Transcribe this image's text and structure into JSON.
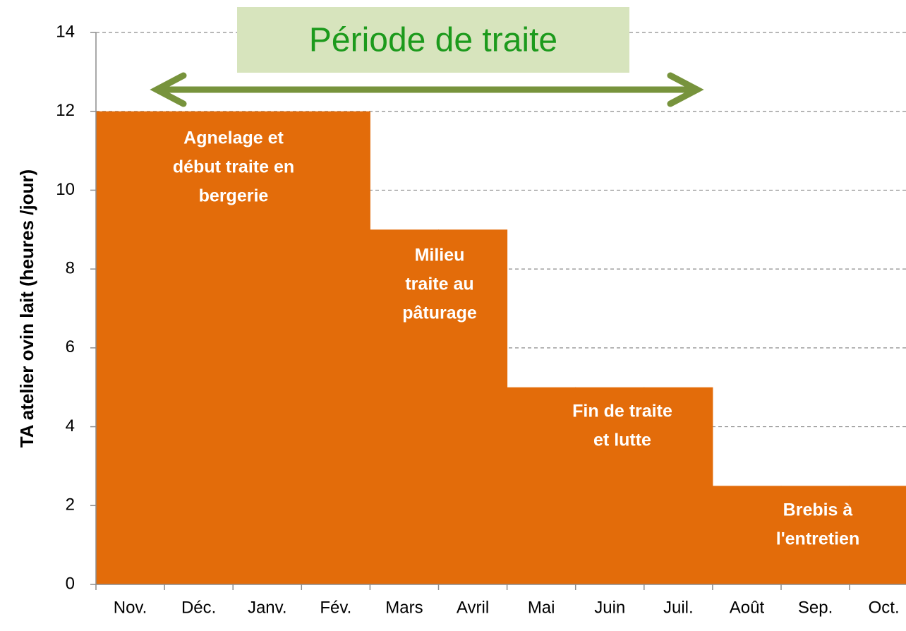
{
  "chart_data": {
    "type": "bar",
    "y_label": "TA atelier ovin lait  (heures /jour)",
    "categories": [
      "Nov.",
      "Déc.",
      "Janv.",
      "Fév.",
      "Mars",
      "Avril",
      "Mai",
      "Juin",
      "Juil.",
      "Août",
      "Sep.",
      "Oct."
    ],
    "values": [
      12,
      12,
      12,
      12,
      9,
      9,
      5,
      5,
      5,
      2.5,
      2.5,
      2.5
    ],
    "color": "#e36c0a",
    "ylim": [
      0,
      14
    ],
    "yticks": [
      0,
      2,
      4,
      6,
      8,
      10,
      12,
      14
    ],
    "grid": true,
    "annotations": [
      {
        "text": "Période de traite"
      },
      {
        "lines": [
          "Agnelage et",
          "début traite en",
          "bergerie"
        ]
      },
      {
        "lines": [
          "Milieu",
          "traite  au",
          "pâturage"
        ]
      },
      {
        "lines": [
          "Fin de traite",
          "et lutte"
        ]
      },
      {
        "lines": [
          "Brebis à",
          "l'entretien"
        ]
      }
    ]
  }
}
